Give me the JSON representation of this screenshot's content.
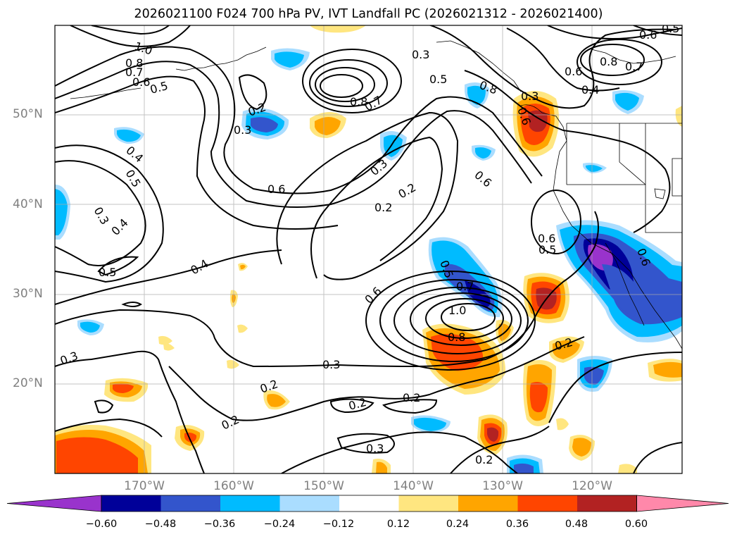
{
  "title": "2026021100 F024 700 hPa PV, IVT Landfall PC (2026021312 - 2026021400)",
  "lat_labels": [
    "50°N",
    "40°N",
    "30°N",
    "20°N"
  ],
  "lon_labels": [
    "170°W",
    "160°W",
    "150°W",
    "140°W",
    "130°W",
    "120°W"
  ],
  "colorbar": {
    "ticks": [
      "−0.60",
      "−0.48",
      "−0.36",
      "−0.24",
      "−0.12",
      "0.12",
      "0.24",
      "0.36",
      "0.48",
      "0.60"
    ],
    "colors": [
      "#9933cc",
      "#000099",
      "#3355cc",
      "#00bbff",
      "#aaddff",
      "#ffffff",
      "#ffe680",
      "#ffa500",
      "#ff4500",
      "#b22222",
      "#ff88aa"
    ]
  },
  "contour_labels": [
    "1.0",
    "0.8",
    "0.7",
    "0.6",
    "0.5",
    "0.3",
    "0.5",
    "0.8",
    "0.7",
    "0.2",
    "0.3",
    "0.4",
    "0.5",
    "0.3",
    "0.4",
    "0.5",
    "0.6",
    "0.3",
    "0.2",
    "0.2",
    "0.4",
    "0.6",
    "0.5",
    "0.7",
    "1.0",
    "0.8",
    "0.6",
    "0.3",
    "0.2",
    "0.2",
    "0.3",
    "0.2",
    "0.3",
    "0.2",
    "0.2",
    "0.2",
    "0.6",
    "0.5",
    "0.6",
    "0.6",
    "0.8",
    "0.7",
    "0.4",
    "0.6",
    "0.5",
    "0.3",
    "0.6",
    "0.8"
  ]
}
